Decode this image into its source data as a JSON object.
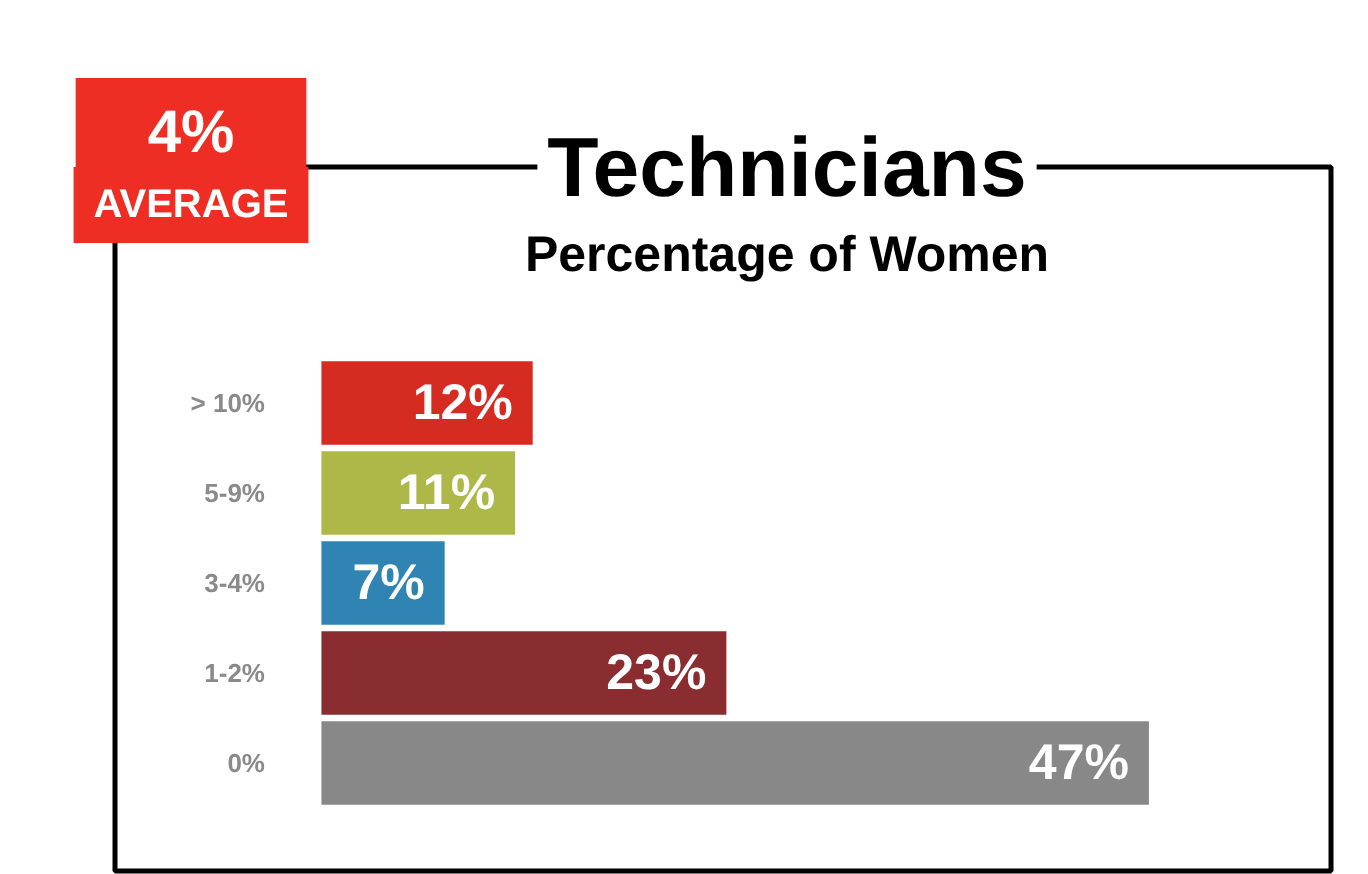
{
  "chart_data": {
    "type": "bar",
    "orientation": "horizontal",
    "title": "Technicians",
    "subtitle": "Percentage of Women",
    "annotations": [
      "4%",
      "AVERAGE"
    ],
    "categories": [
      "> 10%",
      "5-9%",
      "3-4%",
      "1-2%",
      "0%"
    ],
    "values": [
      12,
      11,
      7,
      23,
      47
    ],
    "colors": [
      "#d52b20",
      "#adb848",
      "#2f84b4",
      "#8a2d30",
      "#888888"
    ],
    "value_labels": [
      "12%",
      "11%",
      "7%",
      "23%",
      "47%"
    ],
    "xlim": [
      -18.2,
      59.5
    ],
    "tick_labels": "y",
    "grid": false
  }
}
